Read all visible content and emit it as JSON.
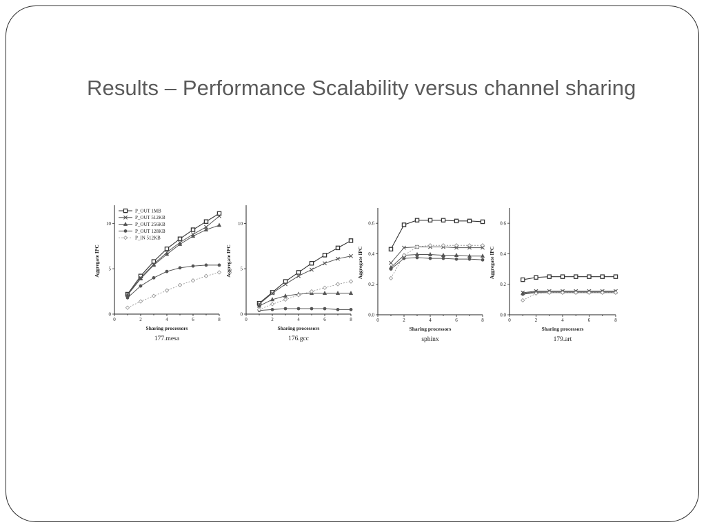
{
  "slide": {
    "title": "Results – Performance Scalability versus channel sharing"
  },
  "colors": {
    "frame": "#2b2b2b",
    "title": "#5a5a5a",
    "series_dark": "#333333",
    "series_mid": "#555555",
    "series_light": "#9a9a9a"
  },
  "legend": {
    "placement": "top-left",
    "entries": [
      "P_OUT 1MB",
      "P_OUT 512KB",
      "P_OUT 256KB",
      "P_OUT 128KB",
      "P_IN 512KB"
    ]
  },
  "chart_data": [
    {
      "type": "line",
      "title": "177.mesa",
      "xlabel": "Sharing processors",
      "ylabel": "Aggregate IPC",
      "xlim": [
        0,
        8
      ],
      "ylim": [
        0,
        12
      ],
      "xticks": [
        "0",
        "2",
        "4",
        "6",
        "8"
      ],
      "yticks": [
        "0",
        "5",
        "10"
      ],
      "ytick_values": [
        0,
        5,
        10
      ],
      "x": [
        1,
        2,
        3,
        4,
        5,
        6,
        7,
        8
      ],
      "series": [
        {
          "name": "P_OUT 1MB",
          "values": [
            2.2,
            4.2,
            5.8,
            7.2,
            8.3,
            9.3,
            10.2,
            11.1
          ]
        },
        {
          "name": "P_OUT 512KB",
          "values": [
            2.1,
            4.0,
            5.5,
            6.8,
            7.9,
            8.8,
            9.6,
            10.8
          ]
        },
        {
          "name": "P_OUT 256KB",
          "values": [
            2.1,
            3.9,
            5.4,
            6.6,
            7.7,
            8.6,
            9.3,
            9.8
          ]
        },
        {
          "name": "P_OUT 128KB",
          "values": [
            1.8,
            3.1,
            4.0,
            4.7,
            5.1,
            5.3,
            5.4,
            5.4
          ]
        },
        {
          "name": "P_IN 512KB",
          "values": [
            0.7,
            1.4,
            2.0,
            2.6,
            3.2,
            3.7,
            4.2,
            4.6
          ]
        }
      ]
    },
    {
      "type": "line",
      "title": "176.gcc",
      "xlabel": "Sharing processors",
      "ylabel": "Aggregate IPC",
      "xlim": [
        0,
        8
      ],
      "ylim": [
        0,
        12
      ],
      "xticks": [
        "0",
        "2",
        "4",
        "6",
        "8"
      ],
      "yticks": [
        "0",
        "5",
        "10"
      ],
      "ytick_values": [
        0,
        5,
        10
      ],
      "x": [
        1,
        2,
        3,
        4,
        5,
        6,
        7,
        8
      ],
      "series": [
        {
          "name": "P_OUT 1MB",
          "values": [
            1.2,
            2.4,
            3.6,
            4.6,
            5.6,
            6.5,
            7.3,
            8.1
          ]
        },
        {
          "name": "P_OUT 512KB",
          "values": [
            1.1,
            2.3,
            3.3,
            4.2,
            4.9,
            5.6,
            6.1,
            6.4
          ]
        },
        {
          "name": "P_OUT 256KB",
          "values": [
            0.9,
            1.6,
            2.0,
            2.2,
            2.3,
            2.3,
            2.3,
            2.3
          ]
        },
        {
          "name": "P_OUT 128KB",
          "values": [
            0.4,
            0.5,
            0.6,
            0.6,
            0.6,
            0.6,
            0.5,
            0.5
          ]
        },
        {
          "name": "P_IN 512KB",
          "values": [
            0.5,
            1.1,
            1.6,
            2.1,
            2.5,
            2.9,
            3.3,
            3.6
          ]
        }
      ]
    },
    {
      "type": "line",
      "title": "sphinx",
      "xlabel": "Sharing processors",
      "ylabel": "Aggregate IPC",
      "xlim": [
        0,
        8
      ],
      "ylim": [
        0,
        0.7
      ],
      "xticks": [
        "0",
        "2",
        "4",
        "6",
        "8"
      ],
      "yticks": [
        "0.0",
        "0.2",
        "0.4",
        "0.6"
      ],
      "ytick_values": [
        0,
        0.2,
        0.4,
        0.6
      ],
      "x": [
        1,
        2,
        3,
        4,
        5,
        6,
        7,
        8
      ],
      "series": [
        {
          "name": "P_OUT 1MB",
          "values": [
            0.43,
            0.59,
            0.62,
            0.62,
            0.62,
            0.615,
            0.615,
            0.61
          ]
        },
        {
          "name": "P_OUT 512KB",
          "values": [
            0.34,
            0.44,
            0.445,
            0.445,
            0.445,
            0.44,
            0.44,
            0.44
          ]
        },
        {
          "name": "P_OUT 256KB",
          "values": [
            0.31,
            0.39,
            0.395,
            0.395,
            0.39,
            0.39,
            0.385,
            0.385
          ]
        },
        {
          "name": "P_OUT 128KB",
          "values": [
            0.3,
            0.37,
            0.375,
            0.37,
            0.37,
            0.365,
            0.365,
            0.36
          ]
        },
        {
          "name": "P_IN 512KB",
          "values": [
            0.24,
            0.39,
            0.445,
            0.455,
            0.455,
            0.455,
            0.455,
            0.455
          ]
        }
      ]
    },
    {
      "type": "line",
      "title": "179.art",
      "xlabel": "Sharing processors",
      "ylabel": "Aggregate IPC",
      "xlim": [
        0,
        8
      ],
      "ylim": [
        0,
        0.7
      ],
      "xticks": [
        "0",
        "2",
        "4",
        "6",
        "8"
      ],
      "yticks": [
        "0.0",
        "0.2",
        "0.4",
        "0.6"
      ],
      "ytick_values": [
        0,
        0.2,
        0.4,
        0.6
      ],
      "x": [
        1,
        2,
        3,
        4,
        5,
        6,
        7,
        8
      ],
      "series": [
        {
          "name": "P_OUT 1MB",
          "values": [
            0.23,
            0.245,
            0.25,
            0.25,
            0.25,
            0.25,
            0.25,
            0.25
          ]
        },
        {
          "name": "P_OUT 512KB",
          "values": [
            0.145,
            0.155,
            0.155,
            0.155,
            0.155,
            0.155,
            0.155,
            0.155
          ]
        },
        {
          "name": "P_OUT 256KB",
          "values": [
            0.14,
            0.15,
            0.15,
            0.15,
            0.15,
            0.15,
            0.15,
            0.15
          ]
        },
        {
          "name": "P_OUT 128KB",
          "values": [
            0.135,
            0.145,
            0.145,
            0.145,
            0.145,
            0.145,
            0.145,
            0.145
          ]
        },
        {
          "name": "P_IN 512KB",
          "values": [
            0.095,
            0.14,
            0.145,
            0.145,
            0.145,
            0.145,
            0.145,
            0.145
          ]
        }
      ]
    }
  ]
}
